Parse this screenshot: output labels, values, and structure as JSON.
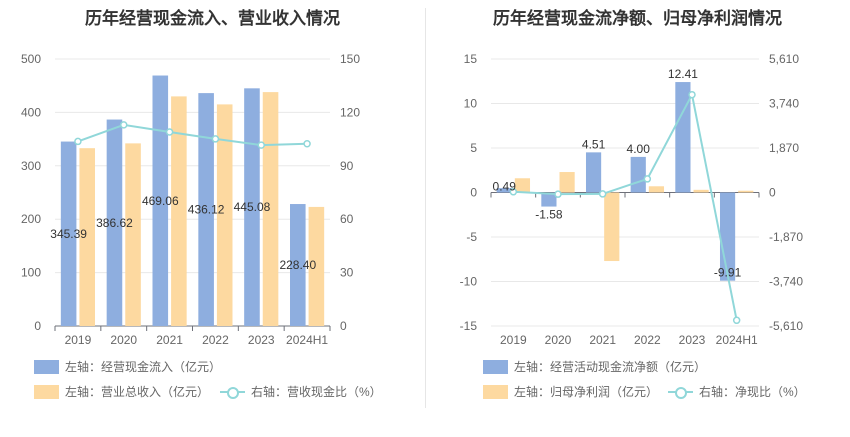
{
  "colors": {
    "bar_blue": "#8eaedf",
    "bar_orange": "#fdd9a0",
    "line_teal": "#90d7d9",
    "grid": "#e8e8e8"
  },
  "left": {
    "title": "历年经营现金流入、营业收入情况",
    "legend": {
      "cash_inflow": "左轴：经营现金流入（亿元）",
      "revenue": "左轴：营业总收入（亿元）",
      "ratio": "右轴：营收现金比（%）"
    }
  },
  "right": {
    "title": "历年经营现金流净额、归母净利润情况",
    "legend": {
      "net_cash": "左轴：经营活动现金流净额（亿元）",
      "net_profit": "左轴：归母净利润（亿元）",
      "ratio": "右轴：净现比（%）"
    }
  },
  "chart_data": [
    {
      "type": "bar",
      "title": "历年经营现金流入、营业收入情况",
      "categories": [
        "2019",
        "2020",
        "2021",
        "2022",
        "2023",
        "2024H1"
      ],
      "left_axis": {
        "ticks": [
          0,
          100,
          200,
          300,
          400,
          500
        ],
        "tick_labels": [
          "0",
          "100",
          "200",
          "300",
          "400",
          "500"
        ],
        "ylim": [
          0,
          500
        ]
      },
      "right_axis": {
        "ticks": [
          0,
          30,
          60,
          90,
          120,
          150
        ],
        "tick_labels": [
          "0",
          "30",
          "60",
          "90",
          "120",
          "150"
        ],
        "ylim": [
          0,
          150
        ]
      },
      "series": [
        {
          "name": "左轴：经营现金流入（亿元）",
          "kind": "bar",
          "axis": "left",
          "values": [
            345.39,
            386.62,
            469.06,
            436.12,
            445.08,
            228.4
          ],
          "labels": [
            "345.39",
            "386.62",
            "469.06",
            "436.12",
            "445.08",
            "228.40"
          ]
        },
        {
          "name": "左轴：营业总收入（亿元）",
          "kind": "bar",
          "axis": "left",
          "values": [
            333,
            342,
            430,
            415,
            438,
            223
          ]
        },
        {
          "name": "右轴：营收现金比（%）",
          "kind": "line",
          "axis": "right",
          "values": [
            103.7,
            113.0,
            109.0,
            105.1,
            101.6,
            102.4
          ]
        }
      ]
    },
    {
      "type": "bar",
      "title": "历年经营现金流净额、归母净利润情况",
      "categories": [
        "2019",
        "2020",
        "2021",
        "2022",
        "2023",
        "2024H1"
      ],
      "left_axis": {
        "ticks": [
          -15,
          -10,
          -5,
          0,
          5,
          10,
          15
        ],
        "tick_labels": [
          "-15",
          "-10",
          "-5",
          "0",
          "5",
          "10",
          "15"
        ],
        "ylim": [
          -15,
          15
        ]
      },
      "right_axis": {
        "ticks": [
          -5610,
          -3740,
          -1870,
          0,
          1870,
          3740,
          5610
        ],
        "tick_labels": [
          "-5,610",
          "-3,740",
          "-1,870",
          "0",
          "1,870",
          "3,740",
          "5,610"
        ],
        "ylim": [
          -5610,
          5610
        ]
      },
      "series": [
        {
          "name": "左轴：经营活动现金流净额（亿元）",
          "kind": "bar",
          "axis": "left",
          "values": [
            0.49,
            -1.58,
            4.51,
            4.0,
            12.41,
            -9.91
          ],
          "labels": [
            "0.49",
            "-1.58",
            "4.51",
            "4.00",
            "12.41",
            "-9.91"
          ]
        },
        {
          "name": "左轴：归母净利润（亿元）",
          "kind": "bar",
          "axis": "left",
          "values": [
            1.6,
            2.3,
            -7.7,
            0.7,
            0.3,
            0.2
          ]
        },
        {
          "name": "右轴：净现比（%）",
          "kind": "line",
          "axis": "right",
          "values": [
            30,
            -70,
            -60,
            570,
            4110,
            -5370
          ]
        }
      ]
    }
  ]
}
